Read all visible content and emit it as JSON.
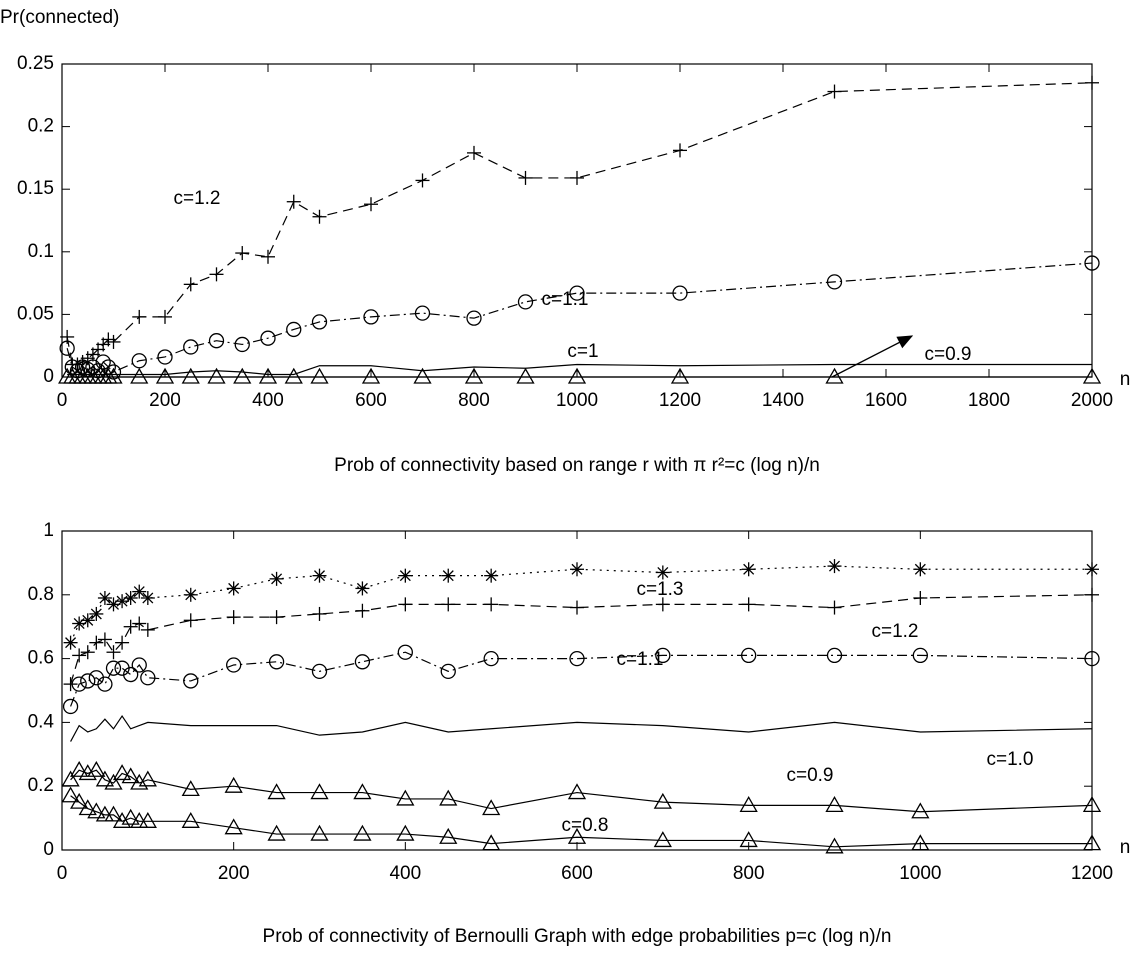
{
  "chart_data": [
    {
      "type": "line",
      "y_label": "Pr(connected)",
      "x_label": "n",
      "title": "Prob of connectivity based on range r with π r²=c (log n)/n",
      "xlim": [
        0,
        2000
      ],
      "ylim": [
        0,
        0.25
      ],
      "xticks": [
        0,
        200,
        400,
        600,
        800,
        1000,
        1200,
        1400,
        1600,
        1800,
        2000
      ],
      "yticks": [
        0,
        0.05,
        0.1,
        0.15,
        0.2,
        0.25
      ],
      "x": [
        10,
        20,
        30,
        40,
        50,
        60,
        70,
        80,
        90,
        100,
        150,
        200,
        250,
        300,
        350,
        400,
        450,
        500,
        600,
        700,
        800,
        900,
        1000,
        1200,
        1500,
        2000
      ],
      "series": [
        {
          "name": "c=1.2",
          "color": "#000000",
          "marker": "plus",
          "dash": "dashed",
          "values": [
            0.032,
            0.01,
            0.01,
            0.012,
            0.015,
            0.018,
            0.022,
            0.026,
            0.03,
            0.028,
            0.048,
            0.048,
            0.074,
            0.082,
            0.099,
            0.096,
            0.14,
            0.128,
            0.138,
            0.157,
            0.179,
            0.159,
            0.159,
            0.181,
            0.228,
            0.235
          ]
        },
        {
          "name": "c=1.1",
          "color": "#000000",
          "marker": "circle",
          "dash": "dashdot",
          "values": [
            0.023,
            0.008,
            0.005,
            0.008,
            0.006,
            0.008,
            0.005,
            0.012,
            0.008,
            0.004,
            0.013,
            0.016,
            0.024,
            0.029,
            0.026,
            0.031,
            0.038,
            0.044,
            0.048,
            0.051,
            0.047,
            0.06,
            0.067,
            0.067,
            0.076,
            0.091
          ]
        },
        {
          "name": "c=1",
          "color": "#000000",
          "marker": "none",
          "dash": "solid",
          "values": [
            0.002,
            0.002,
            0.002,
            0.002,
            0.002,
            0.002,
            0.002,
            0.002,
            0.002,
            0.002,
            0.002,
            0.002,
            0.004,
            0.005,
            0.004,
            0.002,
            0.002,
            0.009,
            0.009,
            0.005,
            0.008,
            0.007,
            0.01,
            0.009,
            0.01,
            0.01
          ]
        },
        {
          "name": "c=0.9",
          "color": "#000000",
          "marker": "triangle",
          "dash": "solid",
          "values": [
            0,
            0,
            0,
            0,
            0,
            0,
            0,
            0,
            0,
            0,
            0,
            0,
            0,
            0,
            0,
            0,
            0,
            0,
            0,
            0,
            0,
            0,
            0,
            0,
            0,
            0
          ]
        }
      ],
      "annotations": [
        "c=1.2",
        "c=1.1",
        "c=1",
        "c=0.9"
      ]
    },
    {
      "type": "line",
      "x_label": "n",
      "title": "Prob of connectivity of Bernoulli Graph with edge probabilities  p=c (log n)/n",
      "xlim": [
        0,
        1200
      ],
      "ylim": [
        0,
        1
      ],
      "xticks": [
        0,
        200,
        400,
        600,
        800,
        1000,
        1200
      ],
      "yticks": [
        0,
        0.2,
        0.4,
        0.6,
        0.8,
        1
      ],
      "x": [
        10,
        20,
        30,
        40,
        50,
        60,
        70,
        80,
        90,
        100,
        150,
        200,
        250,
        300,
        350,
        400,
        450,
        500,
        600,
        700,
        800,
        900,
        1000,
        1200
      ],
      "series": [
        {
          "name": "c=1.3",
          "color": "#000000",
          "marker": "star",
          "dash": "dotted",
          "values": [
            0.65,
            0.71,
            0.72,
            0.74,
            0.79,
            0.77,
            0.78,
            0.79,
            0.81,
            0.79,
            0.8,
            0.82,
            0.85,
            0.86,
            0.82,
            0.86,
            0.86,
            0.86,
            0.88,
            0.87,
            0.88,
            0.89,
            0.88,
            0.88
          ]
        },
        {
          "name": "c=1.2",
          "color": "#000000",
          "marker": "plus",
          "dash": "dashed",
          "values": [
            0.52,
            0.61,
            0.62,
            0.65,
            0.66,
            0.62,
            0.65,
            0.7,
            0.71,
            0.69,
            0.72,
            0.73,
            0.73,
            0.74,
            0.75,
            0.77,
            0.77,
            0.77,
            0.76,
            0.77,
            0.77,
            0.76,
            0.79,
            0.8
          ]
        },
        {
          "name": "c=1.1",
          "color": "#000000",
          "marker": "circle",
          "dash": "dashdot",
          "values": [
            0.45,
            0.52,
            0.53,
            0.54,
            0.52,
            0.57,
            0.57,
            0.55,
            0.58,
            0.54,
            0.53,
            0.58,
            0.59,
            0.56,
            0.59,
            0.62,
            0.56,
            0.6,
            0.6,
            0.61,
            0.61,
            0.61,
            0.61,
            0.6
          ]
        },
        {
          "name": "c=1.0",
          "color": "#000000",
          "marker": "none",
          "dash": "solid",
          "values": [
            0.34,
            0.39,
            0.37,
            0.38,
            0.41,
            0.38,
            0.42,
            0.38,
            0.39,
            0.4,
            0.39,
            0.39,
            0.39,
            0.36,
            0.37,
            0.4,
            0.37,
            0.38,
            0.4,
            0.39,
            0.37,
            0.4,
            0.37,
            0.38
          ]
        },
        {
          "name": "c=0.9",
          "color": "#000000",
          "marker": "triangle",
          "dash": "solid",
          "values": [
            0.22,
            0.25,
            0.24,
            0.25,
            0.22,
            0.21,
            0.24,
            0.23,
            0.21,
            0.22,
            0.19,
            0.2,
            0.18,
            0.18,
            0.18,
            0.16,
            0.16,
            0.13,
            0.18,
            0.15,
            0.14,
            0.14,
            0.12,
            0.14
          ]
        },
        {
          "name": "c=0.8",
          "color": "#000000",
          "marker": "triangle",
          "dash": "solid",
          "values": [
            0.17,
            0.15,
            0.13,
            0.12,
            0.11,
            0.11,
            0.09,
            0.1,
            0.09,
            0.09,
            0.09,
            0.07,
            0.05,
            0.05,
            0.05,
            0.05,
            0.04,
            0.02,
            0.04,
            0.03,
            0.03,
            0.01,
            0.02,
            0.02
          ]
        }
      ],
      "annotations": [
        "c=1.3",
        "c=1.2",
        "c=1.1",
        "c=1.0",
        "c=0.9",
        "c=0.8"
      ]
    }
  ]
}
